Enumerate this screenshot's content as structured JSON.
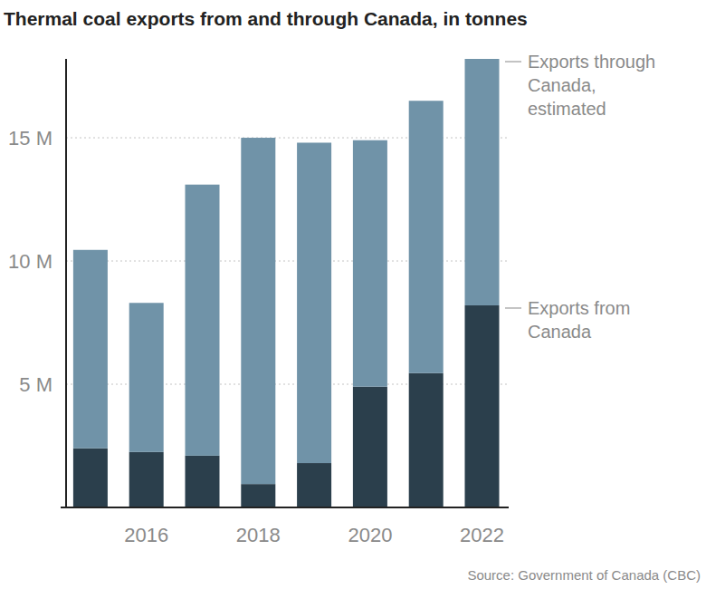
{
  "chart_data": {
    "type": "bar",
    "stacked": true,
    "title": "Thermal coal exports from and through Canada, in tonnes",
    "source": "Source: Government of Canada (CBC)",
    "categories": [
      null,
      "2016",
      null,
      "2018",
      null,
      "2020",
      null,
      "2022"
    ],
    "series": [
      {
        "name": "Exports from Canada",
        "color": "#2b3f4c",
        "values": [
          2400000,
          2250000,
          2100000,
          950000,
          1800000,
          4900000,
          5450000,
          8200000
        ]
      },
      {
        "name": "Exports through Canada, estimated",
        "color": "#7093a8",
        "values": [
          8050000,
          6050000,
          11000000,
          14050000,
          13000000,
          10000000,
          11050000,
          10000000
        ]
      }
    ],
    "ylim": [
      0,
      18200000
    ],
    "yticks": [
      {
        "value": 5000000,
        "label": "5 M"
      },
      {
        "value": 10000000,
        "label": "10 M"
      },
      {
        "value": 15000000,
        "label": "15 M"
      }
    ],
    "grid": true
  }
}
